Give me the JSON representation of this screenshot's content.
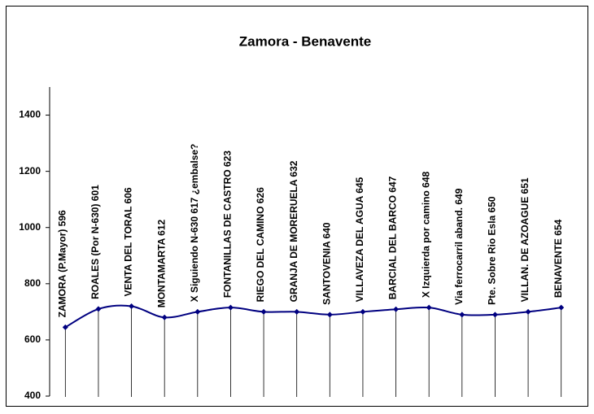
{
  "chart_data": {
    "type": "line",
    "title": "Zamora - Benavente",
    "categories": [
      "ZAMORA  (P.Mayor) 596",
      "ROALES (Por N-630) 601",
      "VENTA DEL TORAL 606",
      "MONTAMARTA 612",
      "X Siguiendo N-630 617 ¿embalse?",
      "FONTANILLAS DE CASTRO 623",
      "RIEGO DEL CAMINO 626",
      "GRANJA DE MORERUELA 632",
      "SANTOVENIA 640",
      "VILLAVEZA DEL AGUA 645",
      "BARCIAL DEL BARCO 647",
      "X  Izquierda por camino 648",
      "Via ferrocarril aband. 649",
      "Pte. Sobre Rio Esla 650",
      "VILLAN. DE AZOAGUE 651",
      "BENAVENTE 654"
    ],
    "values": [
      645,
      710,
      720,
      680,
      700,
      715,
      700,
      700,
      690,
      700,
      709,
      715,
      690,
      690,
      700,
      715
    ],
    "color": "#000080",
    "smooth": true,
    "ylim": [
      400,
      1500
    ],
    "yticks": [
      400,
      600,
      800,
      1000,
      1200,
      1400
    ]
  }
}
